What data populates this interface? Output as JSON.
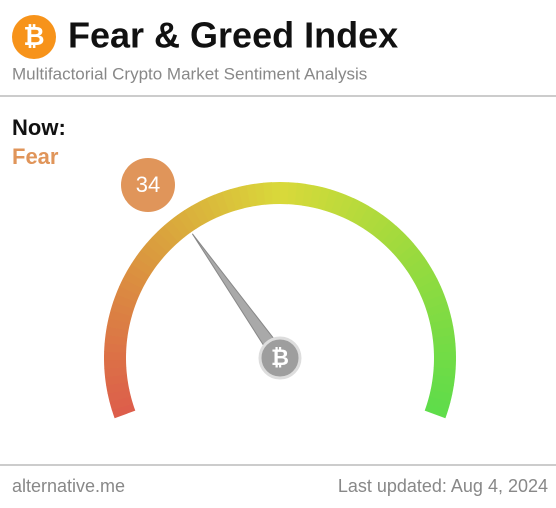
{
  "chart_data": {
    "type": "gauge",
    "title": "Fear & Greed Index",
    "subtitle": "Multifactorial Crypto Market Sentiment Analysis",
    "now_label": "Now:",
    "classification": "Fear",
    "value": 34,
    "ylim": [
      0,
      100
    ],
    "badge_color": "#e0955a",
    "source": "alternative.me",
    "updated": "Last updated: Aug 4, 2024"
  }
}
